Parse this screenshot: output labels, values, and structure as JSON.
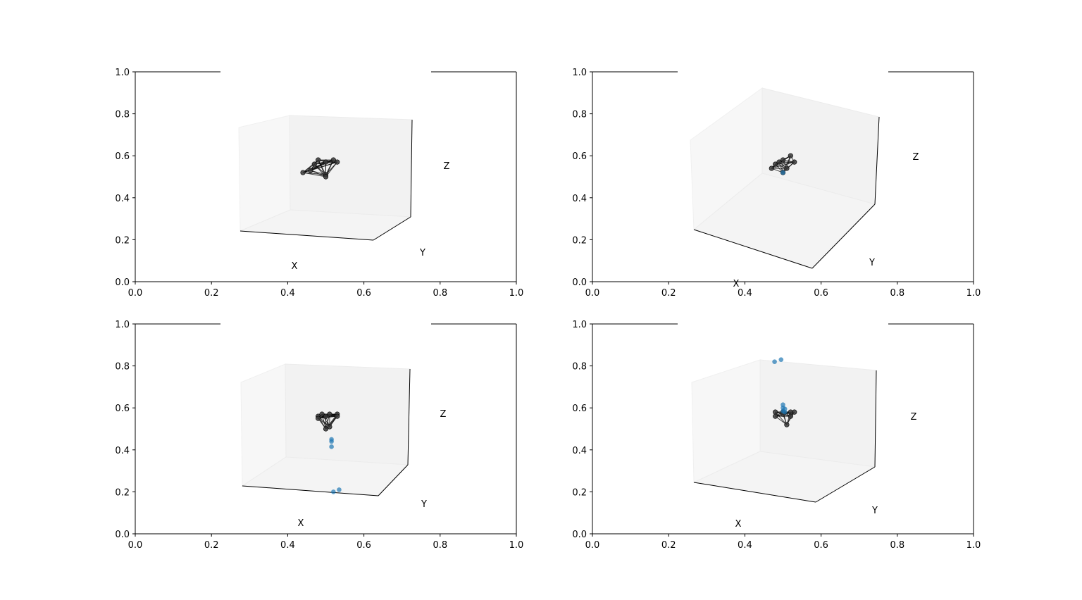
{
  "chart_data": [
    {
      "type": "scatter",
      "title": "",
      "outer_axes": {
        "xlim": [
          0,
          1
        ],
        "ylim": [
          0,
          1
        ],
        "xticks": [
          "0.0",
          "0.2",
          "0.4",
          "0.6",
          "0.8",
          "1.0"
        ],
        "yticks": [
          "0.0",
          "0.2",
          "0.4",
          "0.6",
          "0.8",
          "1.0"
        ]
      },
      "axis3d_labels": {
        "x": "X",
        "y": "Y",
        "z": "Z"
      },
      "pane_color": "#f2f2f2",
      "skeleton_color": "#000000",
      "points_color": "#1f77b4",
      "skeleton_points": [
        [
          0.47,
          0.56
        ],
        [
          0.48,
          0.58
        ],
        [
          0.5,
          0.57
        ],
        [
          0.52,
          0.58
        ],
        [
          0.53,
          0.57
        ],
        [
          0.5,
          0.51
        ],
        [
          0.5,
          0.5
        ],
        [
          0.46,
          0.53
        ],
        [
          0.44,
          0.52
        ]
      ],
      "scatter_points": []
    },
    {
      "type": "scatter",
      "title": "",
      "outer_axes": {
        "xlim": [
          0,
          1
        ],
        "ylim": [
          0,
          1
        ],
        "xticks": [
          "0.0",
          "0.2",
          "0.4",
          "0.6",
          "0.8",
          "1.0"
        ],
        "yticks": [
          "0.0",
          "0.2",
          "0.4",
          "0.6",
          "0.8",
          "1.0"
        ]
      },
      "axis3d_labels": {
        "x": "X",
        "y": "Y",
        "z": "Z"
      },
      "pane_color": "#f2f2f2",
      "skeleton_color": "#000000",
      "points_color": "#1f77b4",
      "skeleton_points": [
        [
          0.48,
          0.56
        ],
        [
          0.5,
          0.58
        ],
        [
          0.52,
          0.6
        ],
        [
          0.53,
          0.57
        ],
        [
          0.51,
          0.54
        ],
        [
          0.5,
          0.52
        ],
        [
          0.47,
          0.54
        ],
        [
          0.49,
          0.57
        ]
      ],
      "scatter_points": [
        [
          0.5,
          0.52
        ]
      ]
    },
    {
      "type": "scatter",
      "title": "",
      "outer_axes": {
        "xlim": [
          0,
          1
        ],
        "ylim": [
          0,
          1
        ],
        "xticks": [
          "0.0",
          "0.2",
          "0.4",
          "0.6",
          "0.8",
          "1.0"
        ],
        "yticks": [
          "0.0",
          "0.2",
          "0.4",
          "0.6",
          "0.8",
          "1.0"
        ]
      },
      "axis3d_labels": {
        "x": "X",
        "y": "Y",
        "z": "Z"
      },
      "pane_color": "#f2f2f2",
      "skeleton_color": "#000000",
      "points_color": "#1f77b4",
      "skeleton_points": [
        [
          0.48,
          0.56
        ],
        [
          0.49,
          0.57
        ],
        [
          0.51,
          0.57
        ],
        [
          0.53,
          0.57
        ],
        [
          0.53,
          0.56
        ],
        [
          0.51,
          0.51
        ],
        [
          0.5,
          0.5
        ],
        [
          0.48,
          0.55
        ],
        [
          0.5,
          0.56
        ]
      ],
      "scatter_points": [
        [
          0.515,
          0.45
        ],
        [
          0.515,
          0.44
        ],
        [
          0.515,
          0.415
        ],
        [
          0.52,
          0.2
        ],
        [
          0.535,
          0.21
        ]
      ]
    },
    {
      "type": "scatter",
      "title": "",
      "outer_axes": {
        "xlim": [
          0,
          1
        ],
        "ylim": [
          0,
          1
        ],
        "xticks": [
          "0.0",
          "0.2",
          "0.4",
          "0.6",
          "0.8",
          "1.0"
        ],
        "yticks": [
          "0.0",
          "0.2",
          "0.4",
          "0.6",
          "0.8",
          "1.0"
        ]
      },
      "axis3d_labels": {
        "x": "X",
        "y": "Y",
        "z": "Z"
      },
      "pane_color": "#f2f2f2",
      "skeleton_color": "#000000",
      "points_color": "#1f77b4",
      "skeleton_points": [
        [
          0.48,
          0.58
        ],
        [
          0.5,
          0.58
        ],
        [
          0.52,
          0.58
        ],
        [
          0.53,
          0.58
        ],
        [
          0.52,
          0.56
        ],
        [
          0.51,
          0.52
        ],
        [
          0.48,
          0.56
        ],
        [
          0.5,
          0.57
        ]
      ],
      "scatter_points": [
        [
          0.478,
          0.82
        ],
        [
          0.495,
          0.83
        ],
        [
          0.5,
          0.615
        ],
        [
          0.5,
          0.6
        ],
        [
          0.505,
          0.595
        ],
        [
          0.5,
          0.585
        ],
        [
          0.505,
          0.58
        ]
      ]
    }
  ]
}
